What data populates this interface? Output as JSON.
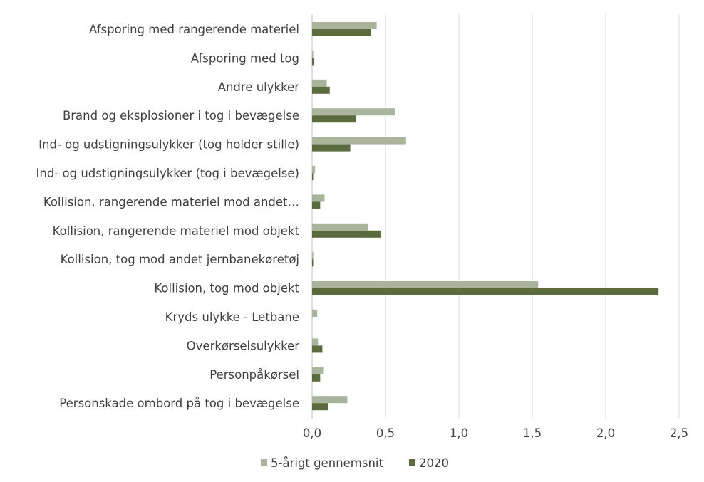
{
  "chart_data": {
    "type": "bar",
    "orientation": "horizontal",
    "categories": [
      "Afsporing med rangerende materiel",
      "Afsporing med tog",
      "Andre ulykker",
      "Brand og eksplosioner i tog i bevægelse",
      "Ind- og udstigningsulykker (tog holder stille)",
      "Ind- og udstigningsulykker (tog i bevægelse)",
      "Kollision, rangerende materiel mod andet…",
      "Kollision, rangerende materiel mod objekt",
      "Kollision, tog mod andet jernbanekøretøj",
      "Kollision, tog mod objekt",
      "Kryds ulykke - Letbane",
      "Overkørselsulykker",
      "Personpåkørsel",
      "Personskade ombord på tog i bevægelse"
    ],
    "series": [
      {
        "name": "5-årigt gennemsnit",
        "color": "#a9b49a",
        "values": [
          0.44,
          0.005,
          0.1,
          0.565,
          0.64,
          0.02,
          0.085,
          0.38,
          0.008,
          1.54,
          0.035,
          0.04,
          0.08,
          0.24
        ]
      },
      {
        "name": "2020",
        "color": "#5a6b3e",
        "values": [
          0.4,
          0.01,
          0.12,
          0.3,
          0.26,
          0.005,
          0.055,
          0.47,
          0.005,
          2.36,
          0.0,
          0.07,
          0.055,
          0.11
        ]
      }
    ],
    "xlim": [
      0,
      2.5
    ],
    "xticks": [
      "0,0",
      "0,5",
      "1,0",
      "1,5",
      "2,0",
      "2,5"
    ],
    "xtick_values": [
      0,
      0.5,
      1.0,
      1.5,
      2.0,
      2.5
    ],
    "grid": true,
    "legend_position": "bottom"
  }
}
